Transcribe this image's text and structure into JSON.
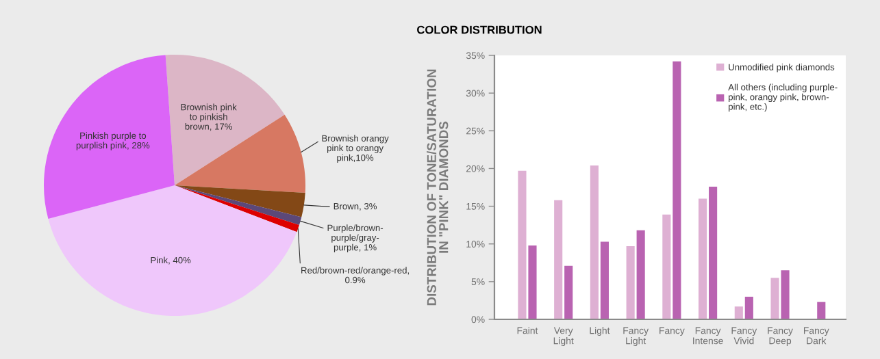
{
  "chart_data": [
    {
      "type": "pie",
      "title": "COLOR DISTRIBUTION",
      "categories": [
        "Brownish pink\nto pinkish\nbrown, 17%",
        "Brownish orangy\npink to orangy\npink,10%",
        "Brown, 3%",
        "Purple/brown-\npurple/gray-\npurple, 1%",
        "Red/brown-red/orange-red,\n0.9%",
        "Pink, 40%",
        "Pinkish purple to\npurplish pink, 28%"
      ],
      "values": [
        17,
        10,
        3,
        1,
        0.9,
        40,
        28
      ],
      "colors": [
        "#dcb6c6",
        "#d77862",
        "#834816",
        "#5c4878",
        "#dd0000",
        "#efc7fb",
        "#db65f7"
      ]
    },
    {
      "type": "bar",
      "ylabel": "DISTRIBUTION OF TONE/SATURATION\nIN \"PINK\" DIAMONDS",
      "categories": [
        "Faint",
        "Very\nLight",
        "Light",
        "Fancy\nLight",
        "Fancy",
        "Fancy\nIntense",
        "Fancy\nVivid",
        "Fancy\nDeep",
        "Fancy\nDark"
      ],
      "series": [
        {
          "name": "Unmodified pink diamonds",
          "color": "#deb0d3",
          "values": [
            19.7,
            15.8,
            20.4,
            9.7,
            13.9,
            16.0,
            1.7,
            5.5,
            null
          ]
        },
        {
          "name": "All others (including purple-\npink, orangy pink, brown-\npink, etc.)",
          "color": "#b963b1",
          "values": [
            9.8,
            7.1,
            10.3,
            11.8,
            34.2,
            17.6,
            3.0,
            6.5,
            2.3
          ]
        }
      ],
      "ylim": [
        0,
        35
      ],
      "yticks": [
        {
          "value": 0,
          "label": "0%"
        },
        {
          "value": 5,
          "label": "5%"
        },
        {
          "value": 10,
          "label": "10%"
        },
        {
          "value": 15,
          "label": "15%"
        },
        {
          "value": 20,
          "label": "20%"
        },
        {
          "value": 25,
          "label": "25%"
        },
        {
          "value": 30,
          "label": "30%"
        },
        {
          "value": 35,
          "label": "35%"
        }
      ],
      "legend": "top right"
    }
  ]
}
